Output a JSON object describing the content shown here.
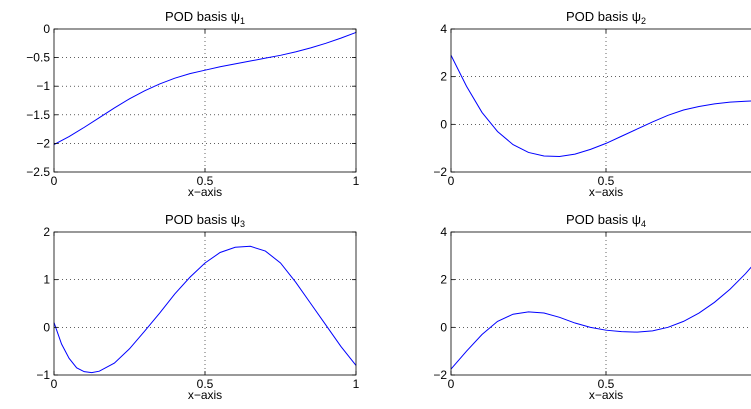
{
  "chart_data": [
    {
      "type": "line",
      "title": "POD basis ψ",
      "title_subscript": "1",
      "xlabel": "x−axis",
      "ylabel": "",
      "xlim": [
        0,
        1
      ],
      "ylim": [
        -2.5,
        0
      ],
      "xticks": [
        0,
        0.5,
        1
      ],
      "xticklabels": [
        "0",
        "0.5",
        "1"
      ],
      "yticks": [
        -2.5,
        -2,
        -1.5,
        -1,
        -0.5,
        0
      ],
      "yticklabels": [
        "−2.5",
        "−2",
        "−1.5",
        "−1",
        "−0.5",
        "0"
      ],
      "grid": true,
      "line_color": "#0000ff",
      "series": [
        {
          "x": [
            0,
            0.05,
            0.1,
            0.15,
            0.2,
            0.25,
            0.3,
            0.35,
            0.4,
            0.45,
            0.5,
            0.55,
            0.6,
            0.65,
            0.7,
            0.75,
            0.8,
            0.85,
            0.9,
            0.95,
            1
          ],
          "y": [
            -2.02,
            -1.88,
            -1.72,
            -1.55,
            -1.38,
            -1.22,
            -1.08,
            -0.96,
            -0.86,
            -0.78,
            -0.72,
            -0.66,
            -0.61,
            -0.56,
            -0.51,
            -0.46,
            -0.4,
            -0.33,
            -0.25,
            -0.16,
            -0.06
          ]
        }
      ]
    },
    {
      "type": "line",
      "title": "POD basis ψ",
      "title_subscript": "2",
      "xlabel": "x−axis",
      "ylabel": "",
      "xlim": [
        0,
        1
      ],
      "ylim": [
        -2,
        4
      ],
      "xticks": [
        0,
        0.5,
        1
      ],
      "xticklabels": [
        "0",
        "0.5",
        ""
      ],
      "yticks": [
        -2,
        0,
        2,
        4
      ],
      "yticklabels": [
        "−2",
        "0",
        "2",
        "4"
      ],
      "grid": true,
      "line_color": "#0000ff",
      "series": [
        {
          "x": [
            0,
            0.05,
            0.1,
            0.15,
            0.2,
            0.25,
            0.3,
            0.35,
            0.4,
            0.45,
            0.5,
            0.55,
            0.6,
            0.65,
            0.7,
            0.75,
            0.8,
            0.85,
            0.9,
            0.95,
            1
          ],
          "y": [
            2.9,
            1.6,
            0.5,
            -0.3,
            -0.85,
            -1.18,
            -1.33,
            -1.35,
            -1.25,
            -1.05,
            -0.8,
            -0.5,
            -0.2,
            0.1,
            0.38,
            0.6,
            0.75,
            0.86,
            0.93,
            0.97,
            1.0
          ]
        }
      ]
    },
    {
      "type": "line",
      "title": "POD basis ψ",
      "title_subscript": "3",
      "xlabel": "x−axis",
      "ylabel": "",
      "xlim": [
        0,
        1
      ],
      "ylim": [
        -1,
        2
      ],
      "xticks": [
        0,
        0.5,
        1
      ],
      "xticklabels": [
        "0",
        "0.5",
        "1"
      ],
      "yticks": [
        -1,
        0,
        1,
        2
      ],
      "yticklabels": [
        "−1",
        "0",
        "1",
        "2"
      ],
      "grid": true,
      "line_color": "#0000ff",
      "series": [
        {
          "x": [
            0,
            0.025,
            0.05,
            0.075,
            0.1,
            0.125,
            0.15,
            0.2,
            0.25,
            0.3,
            0.35,
            0.4,
            0.45,
            0.5,
            0.55,
            0.6,
            0.65,
            0.7,
            0.75,
            0.8,
            0.85,
            0.9,
            0.95,
            1
          ],
          "y": [
            0.1,
            -0.35,
            -0.65,
            -0.85,
            -0.93,
            -0.95,
            -0.92,
            -0.75,
            -0.45,
            -0.08,
            0.3,
            0.7,
            1.05,
            1.35,
            1.57,
            1.68,
            1.7,
            1.6,
            1.35,
            0.95,
            0.5,
            0.05,
            -0.4,
            -0.8
          ]
        }
      ]
    },
    {
      "type": "line",
      "title": "POD basis ψ",
      "title_subscript": "4",
      "xlabel": "x−axis",
      "ylabel": "",
      "xlim": [
        0,
        1
      ],
      "ylim": [
        -2,
        4
      ],
      "xticks": [
        0,
        0.5,
        1
      ],
      "xticklabels": [
        "0",
        "0.5",
        ""
      ],
      "yticks": [
        -2,
        0,
        2,
        4
      ],
      "yticklabels": [
        "−2",
        "0",
        "2",
        "4"
      ],
      "grid": true,
      "line_color": "#0000ff",
      "series": [
        {
          "x": [
            0,
            0.05,
            0.1,
            0.15,
            0.2,
            0.25,
            0.3,
            0.35,
            0.4,
            0.45,
            0.5,
            0.55,
            0.6,
            0.65,
            0.7,
            0.75,
            0.8,
            0.85,
            0.9,
            0.95,
            1
          ],
          "y": [
            -1.75,
            -1.0,
            -0.3,
            0.25,
            0.55,
            0.65,
            0.6,
            0.42,
            0.18,
            0.0,
            -0.12,
            -0.18,
            -0.2,
            -0.15,
            0.0,
            0.25,
            0.6,
            1.05,
            1.6,
            2.25,
            3.0
          ]
        }
      ]
    }
  ]
}
